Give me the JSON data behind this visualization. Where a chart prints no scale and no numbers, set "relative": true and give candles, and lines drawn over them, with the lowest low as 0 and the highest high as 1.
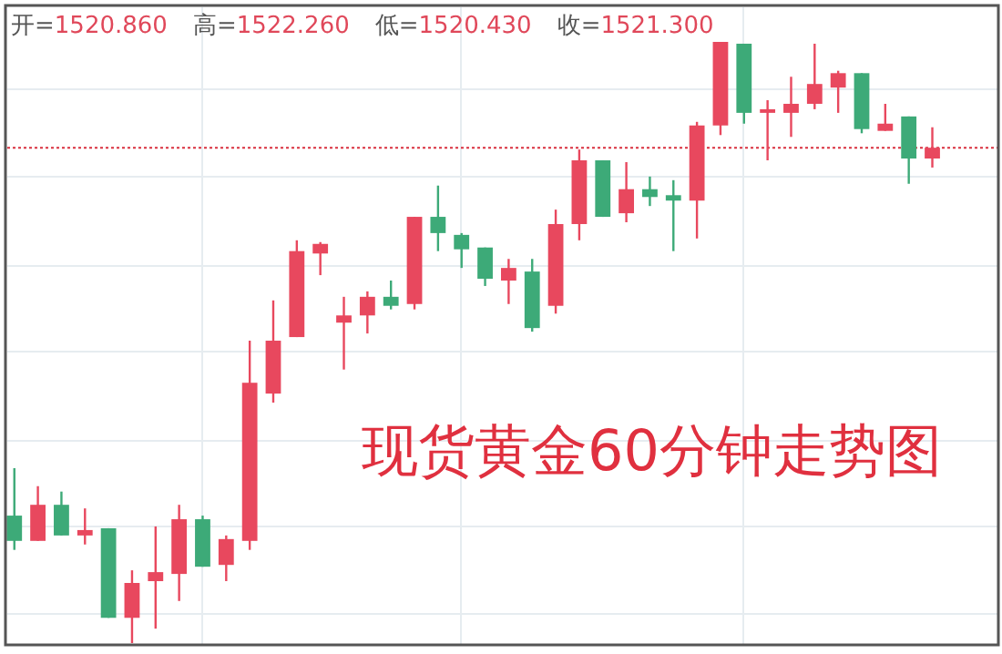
{
  "chart_data": {
    "type": "candlestick",
    "relative": true,
    "title": "现货黄金60分钟走势图",
    "annotations": [
      "开=1520.860",
      "高=1522.260",
      "低=1520.430",
      "收=1521.300"
    ],
    "categories": [
      null,
      null,
      null,
      null,
      null,
      null,
      null,
      null,
      null,
      null,
      null,
      null,
      null,
      null,
      null,
      null,
      null,
      null,
      null,
      null,
      null,
      null,
      null,
      null,
      null,
      null,
      null,
      null,
      null,
      null,
      null,
      null,
      null,
      null,
      null,
      null,
      null,
      null,
      null,
      null
    ],
    "ohlc": [
      [
        0.212,
        0.291,
        0.155,
        0.17
      ],
      [
        0.17,
        0.261,
        0.17,
        0.23
      ],
      [
        0.23,
        0.252,
        0.179,
        0.179
      ],
      [
        0.179,
        0.224,
        0.164,
        0.188
      ],
      [
        0.191,
        0.191,
        0.042,
        0.042
      ],
      [
        0.042,
        0.121,
        0,
        0.1
      ],
      [
        0.103,
        0.194,
        0.024,
        0.118
      ],
      [
        0.115,
        0.23,
        0.07,
        0.206
      ],
      [
        0.206,
        0.212,
        0.127,
        0.127
      ],
      [
        0.13,
        0.179,
        0.103,
        0.173
      ],
      [
        0.17,
        0.503,
        0.155,
        0.433
      ],
      [
        0.415,
        0.57,
        0.4,
        0.503
      ],
      [
        0.509,
        0.67,
        0.509,
        0.652
      ],
      [
        0.648,
        0.667,
        0.612,
        0.664
      ],
      [
        0.533,
        0.576,
        0.455,
        0.545
      ],
      [
        0.545,
        0.585,
        0.515,
        0.576
      ],
      [
        0.576,
        0.603,
        0.555,
        0.561
      ],
      [
        0.564,
        0.709,
        0.555,
        0.709
      ],
      [
        0.709,
        0.761,
        0.652,
        0.682
      ],
      [
        0.679,
        0.682,
        0.624,
        0.655
      ],
      [
        0.658,
        0.658,
        0.594,
        0.606
      ],
      [
        0.603,
        0.639,
        0.564,
        0.624
      ],
      [
        0.618,
        0.639,
        0.518,
        0.524
      ],
      [
        0.561,
        0.721,
        0.548,
        0.697
      ],
      [
        0.697,
        0.821,
        0.67,
        0.803
      ],
      [
        0.803,
        0.803,
        0.709,
        0.709
      ],
      [
        0.715,
        0.8,
        0.7,
        0.755
      ],
      [
        0.755,
        0.776,
        0.727,
        0.742
      ],
      [
        0.745,
        0.77,
        0.652,
        0.736
      ],
      [
        0.736,
        0.867,
        0.673,
        0.861
      ],
      [
        0.861,
        1,
        0.845,
        1
      ],
      [
        0.997,
        0.997,
        0.864,
        0.882
      ],
      [
        0.882,
        0.903,
        0.803,
        0.888
      ],
      [
        0.882,
        0.942,
        0.842,
        0.897
      ],
      [
        0.897,
        0.997,
        0.888,
        0.93
      ],
      [
        0.924,
        0.952,
        0.882,
        0.948
      ],
      [
        0.948,
        0.948,
        0.848,
        0.855
      ],
      [
        0.852,
        0.897,
        0.852,
        0.864
      ],
      [
        0.876,
        0.876,
        0.764,
        0.806
      ],
      [
        0.806,
        0.858,
        0.791,
        0.824
      ]
    ],
    "colors": [
      "#3daa78",
      "#e8485e",
      "#3daa78",
      "#e8485e",
      "#3daa78",
      "#e8485e",
      "#e8485e",
      "#e8485e",
      "#3daa78",
      "#e8485e",
      "#e8485e",
      "#e8485e",
      "#e8485e",
      "#e8485e",
      "#e8485e",
      "#e8485e",
      "#3daa78",
      "#e8485e",
      "#3daa78",
      "#3daa78",
      "#3daa78",
      "#e8485e",
      "#3daa78",
      "#e8485e",
      "#e8485e",
      "#3daa78",
      "#e8485e",
      "#3daa78",
      "#3daa78",
      "#e8485e",
      "#e8485e",
      "#3daa78",
      "#e8485e",
      "#e8485e",
      "#e8485e",
      "#e8485e",
      "#3daa78",
      "#e8485e",
      "#3daa78",
      "#e8485e"
    ],
    "ref_lines": [
      {
        "axis": "y",
        "value": 0.824,
        "color": "#d9303f",
        "line_style": "dotted"
      }
    ],
    "grid": true
  }
}
